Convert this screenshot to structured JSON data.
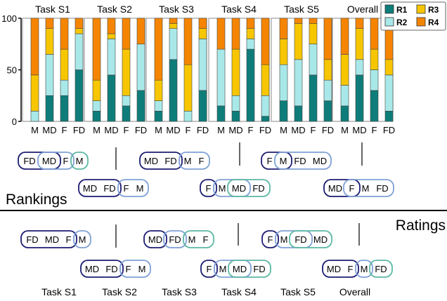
{
  "chart_data": {
    "type": "bar",
    "stacked": true,
    "ylim": [
      0,
      100
    ],
    "yticks": [
      0,
      50,
      100
    ],
    "categories": [
      "M",
      "MD",
      "F",
      "FD"
    ],
    "legend": {
      "placement": "top-right",
      "entries": [
        {
          "name": "R1",
          "color": "#0e7d7a"
        },
        {
          "name": "R2",
          "color": "#a9e8e8"
        },
        {
          "name": "R3",
          "color": "#f7c600"
        },
        {
          "name": "R4",
          "color": "#f58500"
        }
      ]
    },
    "panels": [
      {
        "title": "Task S1",
        "series": [
          {
            "name": "R1",
            "values": [
              0,
              25,
              25,
              50
            ]
          },
          {
            "name": "R2",
            "values": [
              10,
              40,
              15,
              35
            ]
          },
          {
            "name": "R3",
            "values": [
              35,
              25,
              30,
              5
            ]
          },
          {
            "name": "R4",
            "values": [
              55,
              10,
              30,
              10
            ]
          }
        ]
      },
      {
        "title": "Task S2",
        "series": [
          {
            "name": "R1",
            "values": [
              10,
              45,
              15,
              30
            ]
          },
          {
            "name": "R2",
            "values": [
              10,
              35,
              10,
              45
            ]
          },
          {
            "name": "R3",
            "values": [
              20,
              5,
              45,
              0
            ]
          },
          {
            "name": "R4",
            "values": [
              60,
              15,
              30,
              25
            ]
          }
        ]
      },
      {
        "title": "Task S3",
        "series": [
          {
            "name": "R1",
            "values": [
              10,
              60,
              0,
              30
            ]
          },
          {
            "name": "R2",
            "values": [
              10,
              30,
              10,
              50
            ]
          },
          {
            "name": "R3",
            "values": [
              20,
              5,
              45,
              10
            ]
          },
          {
            "name": "R4",
            "values": [
              60,
              5,
              45,
              10
            ]
          }
        ]
      },
      {
        "title": "Task S4",
        "series": [
          {
            "name": "R1",
            "values": [
              15,
              10,
              70,
              5
            ]
          },
          {
            "name": "R2",
            "values": [
              55,
              15,
              10,
              20
            ]
          },
          {
            "name": "R3",
            "values": [
              0,
              45,
              10,
              30
            ]
          },
          {
            "name": "R4",
            "values": [
              30,
              30,
              10,
              45
            ]
          }
        ]
      },
      {
        "title": "Task S5",
        "series": [
          {
            "name": "R1",
            "values": [
              20,
              15,
              45,
              20
            ]
          },
          {
            "name": "R2",
            "values": [
              35,
              45,
              30,
              20
            ]
          },
          {
            "name": "R3",
            "values": [
              25,
              35,
              20,
              20
            ]
          },
          {
            "name": "R4",
            "values": [
              20,
              5,
              5,
              40
            ]
          }
        ]
      },
      {
        "title": "Overall",
        "series": [
          {
            "name": "R1",
            "values": [
              15,
              45,
              30,
              10
            ]
          },
          {
            "name": "R2",
            "values": [
              20,
              15,
              20,
              35
            ]
          },
          {
            "name": "R3",
            "values": [
              30,
              30,
              20,
              15
            ]
          },
          {
            "name": "R4",
            "values": [
              35,
              10,
              30,
              40
            ]
          }
        ]
      }
    ]
  },
  "sections": {
    "rankings_label": "Rankings",
    "ratings_label": "Ratings"
  },
  "bottom_labels": [
    "Task S1",
    "Task S2",
    "Task S3",
    "Task S4",
    "Task S5",
    "Overall"
  ],
  "rankings": [
    {
      "task": "Task S1",
      "order": [
        "FD",
        "MD",
        "F",
        "M"
      ],
      "groups": [
        [
          0,
          1
        ],
        [
          1,
          2
        ],
        [
          3
        ]
      ]
    },
    {
      "task": "Task S2",
      "order": [
        "MD",
        "FD",
        "F",
        "M"
      ],
      "groups": [
        [
          0,
          1
        ],
        [
          2,
          3
        ]
      ]
    },
    {
      "task": "Task S3",
      "order": [
        "MD",
        "FD",
        "M",
        "F"
      ],
      "groups": [
        [
          0,
          1
        ],
        [
          2,
          3
        ]
      ]
    },
    {
      "task": "Task S4",
      "order": [
        "F",
        "M",
        "MD",
        "FD"
      ],
      "groups": [
        [
          0
        ],
        [
          1,
          2
        ],
        [
          2,
          3
        ]
      ]
    },
    {
      "task": "Task S5",
      "order": [
        "F",
        "M",
        "FD",
        "MD"
      ],
      "groups": [
        [
          0,
          1
        ],
        [
          1,
          3
        ]
      ]
    },
    {
      "task": "Overall",
      "order": [
        "MD",
        "F",
        "M",
        "FD"
      ],
      "groups": [
        [
          0,
          1
        ],
        [
          1,
          3
        ]
      ]
    }
  ],
  "ratings": [
    {
      "task": "Task S1",
      "order": [
        "FD",
        "MD",
        "F",
        "M"
      ],
      "groups": [
        [
          0,
          2
        ],
        [
          3
        ]
      ]
    },
    {
      "task": "Task S2",
      "order": [
        "MD",
        "FD",
        "F",
        "M"
      ],
      "groups": [
        [
          0,
          1
        ],
        [
          2,
          3
        ]
      ]
    },
    {
      "task": "Task S3",
      "order": [
        "MD",
        "FD",
        "M",
        "F"
      ],
      "groups": [
        [
          0
        ],
        [
          1
        ],
        [
          2,
          3
        ]
      ]
    },
    {
      "task": "Task S4",
      "order": [
        "F",
        "M",
        "MD",
        "FD"
      ],
      "groups": [
        [
          0
        ],
        [
          1,
          2
        ],
        [
          2,
          3
        ]
      ]
    },
    {
      "task": "Task S5",
      "order": [
        "F",
        "M",
        "FD",
        "MD"
      ],
      "groups": [
        [
          0
        ],
        [
          1,
          2
        ],
        [
          2,
          3
        ]
      ]
    },
    {
      "task": "Overall",
      "order": [
        "MD",
        "F",
        "M",
        "FD"
      ],
      "groups": [
        [
          0,
          1
        ],
        [
          2
        ],
        [
          3
        ]
      ]
    }
  ],
  "group_colors": [
    "#1c1c73",
    "#7fa1d6",
    "#5cb8a4"
  ]
}
